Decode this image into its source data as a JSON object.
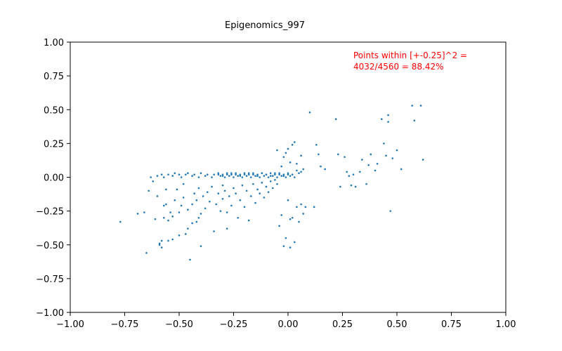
{
  "chart_data": {
    "type": "scatter",
    "title": "Epigenomics_997",
    "xlabel": "",
    "ylabel": "",
    "xlim": [
      -1.0,
      1.0
    ],
    "ylim": [
      -1.0,
      1.0
    ],
    "x_ticks": [
      "−1.00",
      "−0.75",
      "−0.50",
      "−0.25",
      "0.00",
      "0.25",
      "0.50",
      "0.75",
      "1.00"
    ],
    "y_ticks": [
      "1.00",
      "0.75",
      "0.50",
      "0.25",
      "0.00",
      "−0.25",
      "−0.50",
      "−0.75",
      "−1.00"
    ],
    "x_tick_values": [
      -1.0,
      -0.75,
      -0.5,
      -0.25,
      0.0,
      0.25,
      0.5,
      0.75,
      1.0
    ],
    "y_tick_values": [
      1.0,
      0.75,
      0.5,
      0.25,
      0.0,
      -0.25,
      -0.5,
      -0.75,
      -1.0
    ],
    "grid": false,
    "annotation": {
      "lines": [
        "Points within [+-0.25]^2 =",
        "4032/4560 = 88.42%"
      ],
      "color": "#ff0000"
    },
    "series": [
      {
        "color": "#1f77b4",
        "points": [
          [
            -0.77,
            -0.33
          ],
          [
            -0.69,
            -0.27
          ],
          [
            -0.66,
            -0.26
          ],
          [
            -0.65,
            -0.56
          ],
          [
            -0.64,
            -0.1
          ],
          [
            -0.63,
            0.0
          ],
          [
            -0.62,
            -0.03
          ],
          [
            -0.61,
            -0.31
          ],
          [
            -0.6,
            -0.14
          ],
          [
            -0.59,
            -0.49
          ],
          [
            -0.59,
            -0.5
          ],
          [
            -0.58,
            -0.47
          ],
          [
            -0.58,
            -0.52
          ],
          [
            -0.57,
            -0.21
          ],
          [
            -0.57,
            -0.3
          ],
          [
            -0.56,
            -0.2
          ],
          [
            -0.56,
            -0.09
          ],
          [
            -0.55,
            -0.47
          ],
          [
            -0.55,
            -0.32
          ],
          [
            -0.54,
            -0.26
          ],
          [
            -0.53,
            -0.46
          ],
          [
            -0.53,
            -0.29
          ],
          [
            -0.52,
            -0.17
          ],
          [
            -0.51,
            -0.09
          ],
          [
            -0.5,
            -0.43
          ],
          [
            -0.5,
            -0.26
          ],
          [
            -0.49,
            -0.21
          ],
          [
            -0.48,
            -0.15
          ],
          [
            -0.48,
            -0.05
          ],
          [
            -0.47,
            -0.42
          ],
          [
            -0.46,
            -0.38
          ],
          [
            -0.46,
            -0.24
          ],
          [
            -0.45,
            -0.61
          ],
          [
            -0.44,
            -0.34
          ],
          [
            -0.44,
            -0.2
          ],
          [
            -0.43,
            -0.12
          ],
          [
            -0.42,
            -0.33
          ],
          [
            -0.42,
            -0.17
          ],
          [
            -0.41,
            -0.3
          ],
          [
            -0.41,
            -0.08
          ],
          [
            -0.4,
            -0.51
          ],
          [
            -0.4,
            -0.27
          ],
          [
            -0.39,
            -0.14
          ],
          [
            -0.38,
            -0.23
          ],
          [
            -0.37,
            -0.11
          ],
          [
            -0.36,
            -0.18
          ],
          [
            -0.35,
            -0.07
          ],
          [
            -0.34,
            -0.4
          ],
          [
            -0.33,
            -0.2
          ],
          [
            -0.32,
            -0.12
          ],
          [
            -0.31,
            -0.25
          ],
          [
            -0.3,
            -0.16
          ],
          [
            -0.3,
            -0.06
          ],
          [
            -0.29,
            -0.1
          ],
          [
            -0.28,
            -0.38
          ],
          [
            -0.28,
            -0.26
          ],
          [
            -0.27,
            -0.14
          ],
          [
            -0.26,
            -0.21
          ],
          [
            -0.25,
            -0.08
          ],
          [
            -0.24,
            -0.12
          ],
          [
            -0.23,
            -0.3
          ],
          [
            -0.22,
            -0.17
          ],
          [
            -0.21,
            -0.06
          ],
          [
            -0.2,
            -0.22
          ],
          [
            -0.19,
            -0.1
          ],
          [
            -0.18,
            -0.32
          ],
          [
            -0.17,
            -0.14
          ],
          [
            -0.16,
            -0.05
          ],
          [
            -0.15,
            -0.19
          ],
          [
            -0.14,
            -0.09
          ],
          [
            -0.13,
            -0.12
          ],
          [
            -0.12,
            -0.04
          ],
          [
            -0.11,
            -0.15
          ],
          [
            -0.1,
            -0.07
          ],
          [
            -0.09,
            -0.11
          ],
          [
            -0.08,
            -0.03
          ],
          [
            -0.07,
            -0.08
          ],
          [
            -0.06,
            -0.02
          ],
          [
            -0.05,
            -0.05
          ],
          [
            -0.04,
            -0.36
          ],
          [
            -0.03,
            -0.28
          ],
          [
            -0.02,
            -0.51
          ],
          [
            -0.01,
            -0.45
          ],
          [
            0.0,
            -0.17
          ],
          [
            0.01,
            -0.31
          ],
          [
            0.01,
            -0.52
          ],
          [
            0.02,
            -0.3
          ],
          [
            0.03,
            -0.48
          ],
          [
            0.04,
            -0.22
          ],
          [
            0.05,
            -0.33
          ],
          [
            0.06,
            -0.2
          ],
          [
            0.07,
            -0.27
          ],
          [
            0.08,
            -0.22
          ],
          [
            0.12,
            -0.22
          ],
          [
            -0.6,
            0.01
          ],
          [
            -0.58,
            0.02
          ],
          [
            -0.57,
            0.0
          ],
          [
            -0.55,
            0.02
          ],
          [
            -0.53,
            0.01
          ],
          [
            -0.52,
            0.03
          ],
          [
            -0.5,
            0.02
          ],
          [
            -0.49,
            0.0
          ],
          [
            -0.47,
            0.02
          ],
          [
            -0.46,
            0.03
          ],
          [
            -0.44,
            0.01
          ],
          [
            -0.43,
            0.02
          ],
          [
            -0.41,
            0.0
          ],
          [
            -0.4,
            0.03
          ],
          [
            -0.38,
            0.01
          ],
          [
            -0.37,
            0.02
          ],
          [
            -0.35,
            0.0
          ],
          [
            -0.34,
            0.02
          ],
          [
            -0.32,
            0.03
          ],
          [
            -0.31,
            0.01
          ],
          [
            -0.3,
            0.02
          ],
          [
            -0.29,
            0.0
          ],
          [
            -0.28,
            0.03
          ],
          [
            -0.27,
            0.01
          ],
          [
            -0.26,
            0.02
          ],
          [
            -0.25,
            0.0
          ],
          [
            -0.24,
            0.03
          ],
          [
            -0.23,
            0.01
          ],
          [
            -0.22,
            0.02
          ],
          [
            -0.21,
            0.0
          ],
          [
            -0.2,
            0.03
          ],
          [
            -0.19,
            0.01
          ],
          [
            -0.18,
            0.02
          ],
          [
            -0.17,
            0.0
          ],
          [
            -0.16,
            0.03
          ],
          [
            -0.15,
            0.01
          ],
          [
            -0.14,
            0.02
          ],
          [
            -0.13,
            0.0
          ],
          [
            -0.12,
            0.03
          ],
          [
            -0.11,
            0.01
          ],
          [
            -0.1,
            0.02
          ],
          [
            -0.09,
            0.0
          ],
          [
            -0.08,
            0.03
          ],
          [
            -0.07,
            0.01
          ],
          [
            -0.06,
            0.02
          ],
          [
            -0.05,
            0.0
          ],
          [
            -0.04,
            0.03
          ],
          [
            -0.03,
            0.01
          ],
          [
            -0.02,
            0.02
          ],
          [
            -0.01,
            0.0
          ],
          [
            0.0,
            0.03
          ],
          [
            0.01,
            0.01
          ],
          [
            0.02,
            0.02
          ],
          [
            0.03,
            0.0
          ],
          [
            0.04,
            0.05
          ],
          [
            0.05,
            0.03
          ],
          [
            0.06,
            0.04
          ],
          [
            -0.32,
            0.02
          ],
          [
            -0.3,
            0.01
          ],
          [
            -0.28,
            0.02
          ],
          [
            -0.26,
            0.03
          ],
          [
            -0.24,
            0.02
          ],
          [
            -0.22,
            0.01
          ],
          [
            -0.2,
            0.02
          ],
          [
            -0.18,
            0.03
          ],
          [
            -0.16,
            0.02
          ],
          [
            -0.14,
            0.01
          ],
          [
            -0.12,
            0.03
          ],
          [
            -0.1,
            0.02
          ],
          [
            -0.08,
            0.01
          ],
          [
            -0.06,
            0.03
          ],
          [
            -0.04,
            0.02
          ],
          [
            -0.02,
            0.01
          ],
          [
            0.0,
            0.02
          ],
          [
            -0.05,
            0.2
          ],
          [
            -0.03,
            0.08
          ],
          [
            -0.02,
            0.15
          ],
          [
            -0.01,
            0.18
          ],
          [
            0.0,
            0.21
          ],
          [
            0.01,
            0.11
          ],
          [
            0.02,
            0.24
          ],
          [
            0.03,
            0.26
          ],
          [
            0.04,
            0.1
          ],
          [
            0.06,
            0.16
          ],
          [
            0.07,
            0.06
          ],
          [
            0.1,
            0.48
          ],
          [
            0.13,
            0.24
          ],
          [
            0.14,
            0.17
          ],
          [
            0.15,
            0.08
          ],
          [
            0.17,
            0.06
          ],
          [
            0.22,
            0.43
          ],
          [
            0.23,
            0.17
          ],
          [
            0.24,
            -0.07
          ],
          [
            0.26,
            0.15
          ],
          [
            0.27,
            0.04
          ],
          [
            0.28,
            0.01
          ],
          [
            0.29,
            -0.06
          ],
          [
            0.3,
            0.02
          ],
          [
            0.31,
            -0.07
          ],
          [
            0.33,
            0.04
          ],
          [
            0.34,
            0.13
          ],
          [
            0.36,
            -0.05
          ],
          [
            0.37,
            0.09
          ],
          [
            0.38,
            0.17
          ],
          [
            0.4,
            0.05
          ],
          [
            0.41,
            0.1
          ],
          [
            0.43,
            0.43
          ],
          [
            0.44,
            0.25
          ],
          [
            0.45,
            0.16
          ],
          [
            0.46,
            0.41
          ],
          [
            0.46,
            0.46
          ],
          [
            0.47,
            -0.25
          ],
          [
            0.48,
            0.14
          ],
          [
            0.5,
            0.2
          ],
          [
            0.52,
            0.06
          ],
          [
            0.57,
            0.53
          ],
          [
            0.58,
            0.42
          ],
          [
            0.61,
            0.53
          ],
          [
            0.62,
            0.13
          ]
        ]
      }
    ]
  }
}
